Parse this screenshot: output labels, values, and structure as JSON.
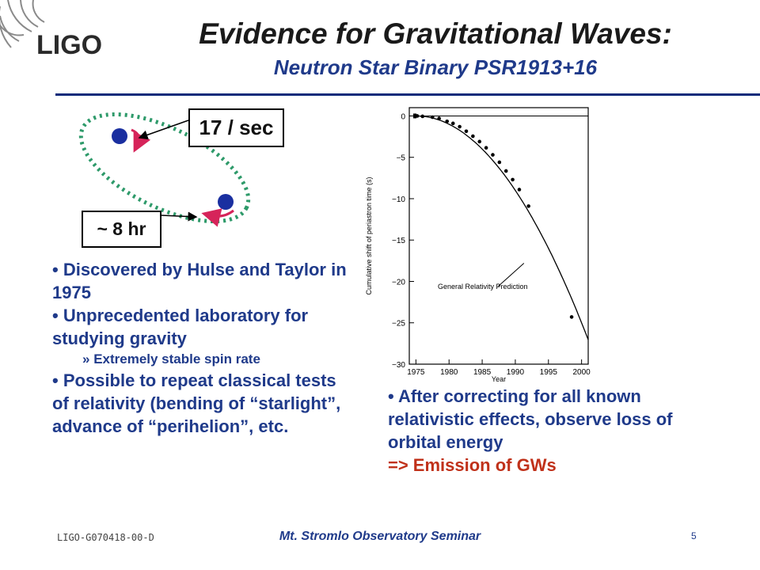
{
  "logo": {
    "text": "LIGO"
  },
  "title": "Evidence for Gravitational Waves:",
  "subtitle": "Neutron Star Binary PSR1913+16",
  "diagram": {
    "spin_label": "17 / sec",
    "period_label": "~ 8 hr",
    "colors": {
      "orbit": "#2e9a6a",
      "star": "#1a2fa0",
      "arrow": "#d6245a"
    }
  },
  "left_bullets": {
    "b1": "Discovered by Hulse and Taylor in 1975",
    "b2": "Unprecedented laboratory for studying gravity",
    "b2_sub": "Extremely stable spin rate",
    "b3": "Possible to repeat classical tests of relativity (bending of “starlight”, advance of “perihelion”, etc."
  },
  "right_bullets": {
    "b1": "After correcting for all known relativistic effects, observe loss of orbital energy",
    "conclusion": "=> Emission of GWs"
  },
  "chart_data": {
    "type": "scatter",
    "ylabel": "Cumulative shift of periastron time (s)",
    "xlabel": "Year",
    "xlim": [
      1974,
      2001
    ],
    "ylim": [
      -30,
      1
    ],
    "x_ticks": [
      1975,
      1980,
      1985,
      1990,
      1995,
      2000
    ],
    "y_ticks": [
      0,
      -5,
      -10,
      -15,
      -20,
      -25,
      -30
    ],
    "annotation": "General Relativity Prediction",
    "series": [
      {
        "x": [
          1975.2,
          1976.0,
          1977.5,
          1978.5,
          1979.7,
          1980.6,
          1981.6,
          1982.6,
          1983.6,
          1984.6,
          1985.6,
          1986.6,
          1987.6,
          1988.6,
          1989.6,
          1990.6,
          1992.0,
          1998.5
        ],
        "y": [
          0.0,
          -0.05,
          -0.15,
          -0.3,
          -0.65,
          -0.9,
          -1.3,
          -1.85,
          -2.45,
          -3.1,
          -3.85,
          -4.7,
          -5.6,
          -6.65,
          -7.7,
          -8.9,
          -10.9,
          -24.3
        ]
      }
    ],
    "prediction_curve": {
      "origin_year": 1975.0,
      "coeff": -0.04,
      "to_year": 2001
    }
  },
  "footer": {
    "doc_id": "LIGO-G070418-00-D",
    "seminar": "Mt. Stromlo Observatory Seminar",
    "page": "5"
  }
}
